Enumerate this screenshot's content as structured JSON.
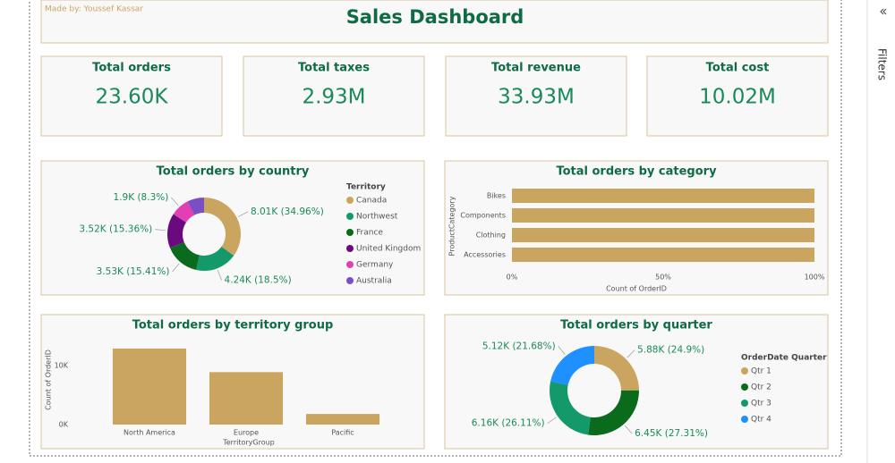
{
  "header": {
    "credit": "Made by: Youssef Kassar",
    "title": "Sales Dashboard"
  },
  "filters_pane": {
    "label": "Filters"
  },
  "cards": [
    {
      "label": "Total orders",
      "value": "23.60K"
    },
    {
      "label": "Total taxes",
      "value": "2.93M"
    },
    {
      "label": "Total revenue",
      "value": "33.93M"
    },
    {
      "label": "Total cost",
      "value": "10.02M"
    }
  ],
  "chart_data": [
    {
      "type": "donut",
      "title": "Total orders by country",
      "legend_title": "Territory",
      "categories": [
        "Canada",
        "Northwest",
        "France",
        "United Kingdom",
        "Germany",
        "Australia"
      ],
      "values": [
        8010,
        4240,
        3530,
        3520,
        1900,
        1710
      ],
      "value_labels": [
        "8.01K (34.96%)",
        "4.24K (18.5%)",
        "3.53K (15.41%)",
        "3.52K (15.36%)",
        "1.9K (8.3%)",
        null
      ],
      "colors": [
        "#c9a560",
        "#14996b",
        "#0b6b1c",
        "#6b0a7e",
        "#e23fb4",
        "#7a4fc4"
      ]
    },
    {
      "type": "hbar",
      "title": "Total orders by category",
      "x_label": "Count of OrderID",
      "y_label": "ProductCategory",
      "categories": [
        "Bikes",
        "Components",
        "Clothing",
        "Accessories"
      ],
      "values": [
        100,
        100,
        100,
        100
      ],
      "color": "#c9a560",
      "xlim": [
        0,
        100
      ],
      "xticks": [
        {
          "value": 0,
          "label": "0%"
        },
        {
          "value": 50,
          "label": "50%"
        },
        {
          "value": 100,
          "label": "100%"
        }
      ]
    },
    {
      "type": "bar",
      "title": "Total orders by territory group",
      "x_label": "TerritoryGroup",
      "y_label": "Count of OrderID",
      "categories": [
        "North America",
        "Europe",
        "Pacific"
      ],
      "values": [
        12900,
        8900,
        1800
      ],
      "color": "#c9a560",
      "ylim": [
        0,
        13500
      ],
      "yticks": [
        {
          "value": 0,
          "label": "0K"
        },
        {
          "value": 10000,
          "label": "10K"
        }
      ]
    },
    {
      "type": "donut",
      "title": "Total orders by quarter",
      "legend_title": "OrderDate Quarter",
      "categories": [
        "Qtr 1",
        "Qtr 2",
        "Qtr 3",
        "Qtr 4"
      ],
      "values": [
        5880,
        6450,
        6160,
        5120
      ],
      "value_labels": [
        "5.88K (24.9%)",
        "6.45K (27.31%)",
        "6.16K (26.11%)",
        "5.12K (21.68%)"
      ],
      "colors": [
        "#c9a560",
        "#0b6b1c",
        "#14996b",
        "#1e90ff"
      ]
    }
  ]
}
